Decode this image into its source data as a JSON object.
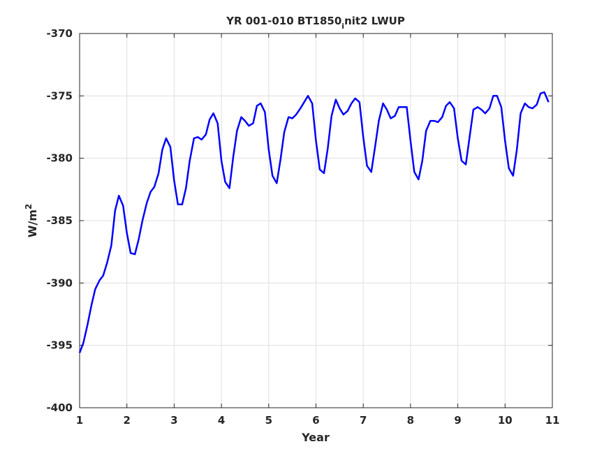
{
  "chart_data": {
    "type": "line",
    "title_main": "YR 001-010 BT1850",
    "title_sub": "i",
    "title_rest": "nit2 LWUP",
    "xlabel": "Year",
    "ylabel_base": "W/m",
    "ylabel_sup": "2",
    "xlim": [
      1,
      11
    ],
    "ylim": [
      -400,
      -370
    ],
    "xticks": [
      1,
      2,
      3,
      4,
      5,
      6,
      7,
      8,
      9,
      10,
      11
    ],
    "yticks": [
      -400,
      -395,
      -390,
      -385,
      -380,
      -375,
      -370
    ],
    "grid": true,
    "series": [
      {
        "color": "#0000ff",
        "x": [
          1.0,
          1.08,
          1.17,
          1.25,
          1.33,
          1.42,
          1.5,
          1.58,
          1.67,
          1.75,
          1.83,
          1.92,
          2.0,
          2.08,
          2.17,
          2.25,
          2.33,
          2.42,
          2.5,
          2.58,
          2.67,
          2.75,
          2.83,
          2.92,
          3.0,
          3.08,
          3.17,
          3.25,
          3.33,
          3.42,
          3.5,
          3.58,
          3.67,
          3.75,
          3.83,
          3.92,
          4.0,
          4.08,
          4.17,
          4.25,
          4.33,
          4.42,
          4.5,
          4.58,
          4.67,
          4.75,
          4.83,
          4.92,
          5.0,
          5.08,
          5.17,
          5.25,
          5.33,
          5.42,
          5.5,
          5.58,
          5.67,
          5.75,
          5.83,
          5.92,
          6.0,
          6.08,
          6.17,
          6.25,
          6.33,
          6.42,
          6.5,
          6.58,
          6.67,
          6.75,
          6.83,
          6.92,
          7.0,
          7.08,
          7.17,
          7.25,
          7.33,
          7.42,
          7.5,
          7.58,
          7.67,
          7.75,
          7.83,
          7.92,
          8.0,
          8.08,
          8.17,
          8.25,
          8.33,
          8.42,
          8.5,
          8.58,
          8.67,
          8.75,
          8.83,
          8.92,
          9.0,
          9.08,
          9.17,
          9.25,
          9.33,
          9.42,
          9.5,
          9.58,
          9.67,
          9.75,
          9.83,
          9.92,
          10.0,
          10.08,
          10.17,
          10.25,
          10.33,
          10.42,
          10.5,
          10.58,
          10.67,
          10.75,
          10.83,
          10.92
        ],
        "y": [
          -395.6,
          -394.8,
          -393.3,
          -391.8,
          -390.5,
          -389.8,
          -389.4,
          -388.4,
          -387.0,
          -384.2,
          -383.0,
          -383.8,
          -386.0,
          -387.6,
          -387.7,
          -386.5,
          -385.0,
          -383.6,
          -382.7,
          -382.3,
          -381.2,
          -379.3,
          -378.4,
          -379.1,
          -381.8,
          -383.7,
          -383.7,
          -382.4,
          -380.2,
          -378.4,
          -378.3,
          -378.5,
          -378.1,
          -376.9,
          -376.4,
          -377.2,
          -380.2,
          -381.9,
          -382.4,
          -379.9,
          -377.8,
          -376.7,
          -377.0,
          -377.4,
          -377.2,
          -375.8,
          -375.6,
          -376.3,
          -379.3,
          -381.4,
          -382.0,
          -380.1,
          -377.9,
          -376.7,
          -376.8,
          -376.5,
          -376.0,
          -375.5,
          -375.0,
          -375.6,
          -378.6,
          -380.9,
          -381.2,
          -379.2,
          -376.6,
          -375.3,
          -376.0,
          -376.5,
          -376.2,
          -375.6,
          -375.2,
          -375.5,
          -378.3,
          -380.6,
          -381.1,
          -379.1,
          -377.0,
          -375.6,
          -376.1,
          -376.8,
          -376.6,
          -375.9,
          -375.9,
          -375.9,
          -378.6,
          -381.1,
          -381.7,
          -380.2,
          -377.8,
          -377.0,
          -377.0,
          -377.1,
          -376.7,
          -375.8,
          -375.5,
          -376.0,
          -378.4,
          -380.2,
          -380.5,
          -378.3,
          -376.1,
          -375.9,
          -376.1,
          -376.4,
          -376.0,
          -375.0,
          -375.0,
          -375.9,
          -378.6,
          -380.8,
          -381.4,
          -379.3,
          -376.4,
          -375.6,
          -375.9,
          -376.0,
          -375.7,
          -374.8,
          -374.7,
          -375.5
        ]
      }
    ]
  }
}
